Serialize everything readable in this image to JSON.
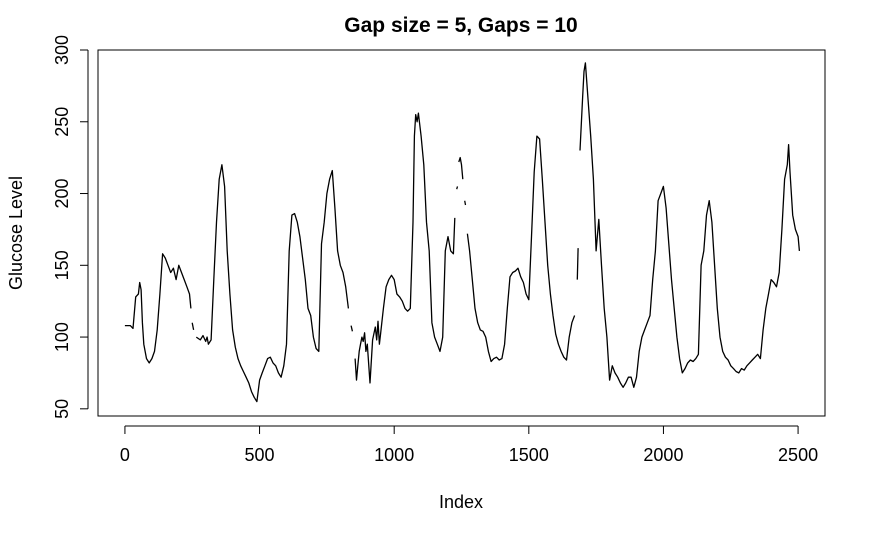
{
  "chart_data": {
    "type": "line",
    "title": "Gap size = 5, Gaps = 10",
    "xlabel": "Index",
    "ylabel": "Glucose Level",
    "xlim": [
      -100,
      2600
    ],
    "ylim": [
      45,
      300
    ],
    "xticks": [
      0,
      500,
      1000,
      1500,
      2000,
      2500
    ],
    "yticks": [
      50,
      100,
      150,
      200,
      250,
      300
    ],
    "grid": false,
    "series_color": "#000000",
    "segments": [
      [
        [
          0,
          108
        ],
        [
          20,
          108
        ],
        [
          30,
          106
        ],
        [
          40,
          128
        ],
        [
          50,
          130
        ],
        [
          55,
          138
        ],
        [
          60,
          133
        ],
        [
          65,
          110
        ],
        [
          70,
          95
        ],
        [
          80,
          85
        ],
        [
          90,
          82
        ],
        [
          100,
          85
        ],
        [
          110,
          90
        ],
        [
          120,
          105
        ],
        [
          130,
          130
        ],
        [
          140,
          158
        ],
        [
          150,
          155
        ],
        [
          160,
          150
        ],
        [
          170,
          145
        ],
        [
          180,
          148
        ],
        [
          190,
          140
        ],
        [
          200,
          150
        ],
        [
          210,
          145
        ],
        [
          220,
          140
        ],
        [
          230,
          135
        ],
        [
          240,
          130
        ],
        [
          245,
          120
        ]
      ],
      [
        [
          250,
          110
        ],
        [
          255,
          105
        ]
      ],
      [
        [
          265,
          100
        ],
        [
          280,
          98
        ],
        [
          290,
          101
        ],
        [
          300,
          97
        ],
        [
          305,
          100
        ],
        [
          310,
          95
        ],
        [
          320,
          98
        ],
        [
          330,
          140
        ],
        [
          340,
          180
        ],
        [
          350,
          210
        ],
        [
          360,
          220
        ],
        [
          370,
          205
        ],
        [
          380,
          160
        ],
        [
          390,
          130
        ],
        [
          400,
          105
        ],
        [
          410,
          93
        ],
        [
          420,
          85
        ],
        [
          430,
          80
        ],
        [
          440,
          76
        ],
        [
          450,
          72
        ],
        [
          460,
          68
        ],
        [
          470,
          62
        ],
        [
          480,
          58
        ],
        [
          490,
          55
        ],
        [
          500,
          70
        ],
        [
          510,
          75
        ],
        [
          520,
          80
        ],
        [
          530,
          85
        ],
        [
          540,
          86
        ],
        [
          550,
          82
        ],
        [
          560,
          80
        ],
        [
          570,
          75
        ],
        [
          580,
          72
        ],
        [
          590,
          80
        ],
        [
          600,
          95
        ],
        [
          610,
          160
        ],
        [
          620,
          185
        ],
        [
          630,
          186
        ],
        [
          640,
          180
        ],
        [
          650,
          170
        ],
        [
          660,
          155
        ],
        [
          670,
          140
        ],
        [
          680,
          120
        ],
        [
          690,
          115
        ],
        [
          700,
          100
        ],
        [
          710,
          92
        ],
        [
          720,
          90
        ],
        [
          730,
          165
        ],
        [
          740,
          180
        ],
        [
          750,
          200
        ],
        [
          760,
          210
        ],
        [
          770,
          216
        ],
        [
          780,
          190
        ],
        [
          790,
          160
        ],
        [
          800,
          150
        ],
        [
          810,
          145
        ],
        [
          820,
          135
        ],
        [
          830,
          120
        ]
      ],
      [
        [
          840,
          108
        ],
        [
          845,
          104
        ]
      ],
      [
        [
          855,
          85
        ],
        [
          860,
          70
        ],
        [
          865,
          80
        ],
        [
          870,
          90
        ],
        [
          875,
          95
        ],
        [
          880,
          100
        ],
        [
          885,
          97
        ],
        [
          890,
          103
        ],
        [
          895,
          90
        ],
        [
          900,
          95
        ],
        [
          910,
          68
        ],
        [
          920,
          98
        ],
        [
          930,
          107
        ],
        [
          935,
          98
        ],
        [
          940,
          111
        ],
        [
          945,
          95
        ],
        [
          950,
          103
        ],
        [
          960,
          120
        ],
        [
          970,
          135
        ],
        [
          980,
          140
        ],
        [
          990,
          143
        ],
        [
          1000,
          140
        ],
        [
          1010,
          130
        ],
        [
          1020,
          128
        ],
        [
          1030,
          125
        ],
        [
          1040,
          120
        ],
        [
          1050,
          118
        ],
        [
          1060,
          120
        ],
        [
          1070,
          180
        ],
        [
          1075,
          240
        ],
        [
          1080,
          255
        ],
        [
          1085,
          250
        ],
        [
          1090,
          256
        ],
        [
          1100,
          240
        ],
        [
          1110,
          220
        ],
        [
          1120,
          180
        ],
        [
          1130,
          160
        ],
        [
          1140,
          110
        ],
        [
          1150,
          100
        ],
        [
          1160,
          95
        ],
        [
          1170,
          90
        ],
        [
          1180,
          100
        ],
        [
          1190,
          160
        ],
        [
          1200,
          170
        ],
        [
          1210,
          160
        ],
        [
          1220,
          158
        ],
        [
          1225,
          183
        ]
      ],
      [
        [
          1232,
          203
        ],
        [
          1235,
          205
        ]
      ],
      [
        [
          1240,
          222
        ],
        [
          1245,
          225
        ],
        [
          1250,
          220
        ],
        [
          1255,
          210
        ]
      ],
      [
        [
          1262,
          195
        ],
        [
          1265,
          192
        ]
      ],
      [
        [
          1272,
          172
        ],
        [
          1280,
          160
        ],
        [
          1290,
          140
        ],
        [
          1300,
          120
        ],
        [
          1310,
          110
        ],
        [
          1320,
          105
        ],
        [
          1330,
          104
        ],
        [
          1340,
          100
        ],
        [
          1350,
          90
        ],
        [
          1360,
          83
        ],
        [
          1370,
          85
        ],
        [
          1380,
          86
        ],
        [
          1390,
          84
        ],
        [
          1400,
          85
        ],
        [
          1410,
          95
        ],
        [
          1420,
          120
        ],
        [
          1430,
          142
        ],
        [
          1440,
          145
        ],
        [
          1450,
          146
        ],
        [
          1460,
          148
        ],
        [
          1470,
          142
        ],
        [
          1480,
          138
        ],
        [
          1490,
          130
        ],
        [
          1500,
          126
        ],
        [
          1510,
          170
        ],
        [
          1520,
          215
        ],
        [
          1530,
          240
        ],
        [
          1540,
          238
        ],
        [
          1550,
          210
        ],
        [
          1560,
          180
        ],
        [
          1570,
          150
        ],
        [
          1580,
          130
        ],
        [
          1590,
          115
        ],
        [
          1600,
          102
        ],
        [
          1610,
          95
        ],
        [
          1620,
          90
        ],
        [
          1630,
          86
        ],
        [
          1640,
          84
        ],
        [
          1650,
          100
        ],
        [
          1660,
          110
        ],
        [
          1670,
          115
        ]
      ],
      [
        [
          1680,
          140
        ],
        [
          1683,
          162
        ]
      ],
      [
        [
          1690,
          230
        ],
        [
          1700,
          268
        ],
        [
          1705,
          285
        ],
        [
          1710,
          291
        ],
        [
          1720,
          265
        ],
        [
          1730,
          240
        ],
        [
          1740,
          210
        ],
        [
          1750,
          160
        ],
        [
          1760,
          182
        ],
        [
          1770,
          150
        ],
        [
          1780,
          120
        ],
        [
          1790,
          100
        ],
        [
          1800,
          70
        ],
        [
          1810,
          80
        ],
        [
          1820,
          75
        ],
        [
          1830,
          72
        ],
        [
          1840,
          68
        ],
        [
          1850,
          65
        ],
        [
          1860,
          68
        ],
        [
          1870,
          72
        ],
        [
          1880,
          72
        ],
        [
          1890,
          65
        ],
        [
          1900,
          72
        ],
        [
          1910,
          90
        ],
        [
          1920,
          100
        ],
        [
          1930,
          105
        ],
        [
          1940,
          110
        ],
        [
          1950,
          115
        ],
        [
          1960,
          140
        ],
        [
          1970,
          160
        ],
        [
          1980,
          195
        ],
        [
          1990,
          200
        ],
        [
          2000,
          205
        ],
        [
          2010,
          190
        ],
        [
          2020,
          165
        ],
        [
          2030,
          140
        ],
        [
          2040,
          120
        ],
        [
          2050,
          100
        ],
        [
          2060,
          85
        ],
        [
          2070,
          75
        ],
        [
          2080,
          78
        ],
        [
          2090,
          82
        ],
        [
          2100,
          84
        ],
        [
          2110,
          83
        ],
        [
          2120,
          85
        ],
        [
          2130,
          88
        ],
        [
          2140,
          150
        ],
        [
          2150,
          160
        ],
        [
          2160,
          185
        ],
        [
          2170,
          195
        ],
        [
          2180,
          180
        ],
        [
          2190,
          150
        ],
        [
          2200,
          120
        ],
        [
          2210,
          100
        ],
        [
          2220,
          90
        ],
        [
          2230,
          86
        ],
        [
          2240,
          84
        ],
        [
          2250,
          80
        ],
        [
          2260,
          78
        ],
        [
          2270,
          76
        ],
        [
          2280,
          75
        ],
        [
          2290,
          78
        ],
        [
          2300,
          77
        ],
        [
          2310,
          80
        ],
        [
          2320,
          82
        ],
        [
          2330,
          84
        ],
        [
          2340,
          86
        ],
        [
          2350,
          88
        ],
        [
          2360,
          85
        ],
        [
          2370,
          105
        ],
        [
          2380,
          120
        ],
        [
          2390,
          130
        ],
        [
          2400,
          140
        ],
        [
          2410,
          138
        ],
        [
          2420,
          135
        ],
        [
          2430,
          145
        ],
        [
          2440,
          175
        ],
        [
          2450,
          210
        ],
        [
          2460,
          220
        ],
        [
          2465,
          234
        ],
        [
          2470,
          215
        ],
        [
          2480,
          185
        ],
        [
          2490,
          175
        ],
        [
          2500,
          170
        ],
        [
          2505,
          160
        ]
      ]
    ]
  }
}
